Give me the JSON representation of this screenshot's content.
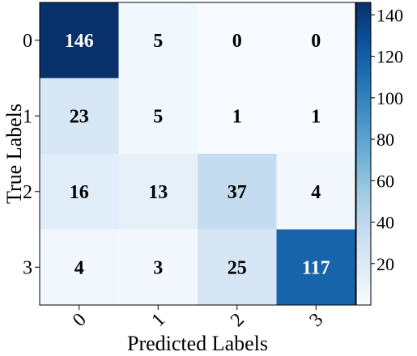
{
  "chart_data": {
    "type": "heatmap",
    "title": "",
    "xlabel": "Predicted Labels",
    "ylabel": "True Labels",
    "x_categories": [
      "0",
      "1",
      "2",
      "3"
    ],
    "y_categories": [
      "0",
      "1",
      "2",
      "3"
    ],
    "values": [
      [
        146,
        5,
        0,
        0
      ],
      [
        23,
        5,
        1,
        1
      ],
      [
        16,
        13,
        37,
        4
      ],
      [
        4,
        3,
        25,
        117
      ]
    ],
    "colorscale": "Blues",
    "colorbar": {
      "range": [
        0,
        146
      ],
      "ticks": [
        "20",
        "40",
        "60",
        "80",
        "100",
        "120",
        "140"
      ]
    },
    "colors": {
      "light": "#f7fbff",
      "dark": "#08306b"
    }
  }
}
